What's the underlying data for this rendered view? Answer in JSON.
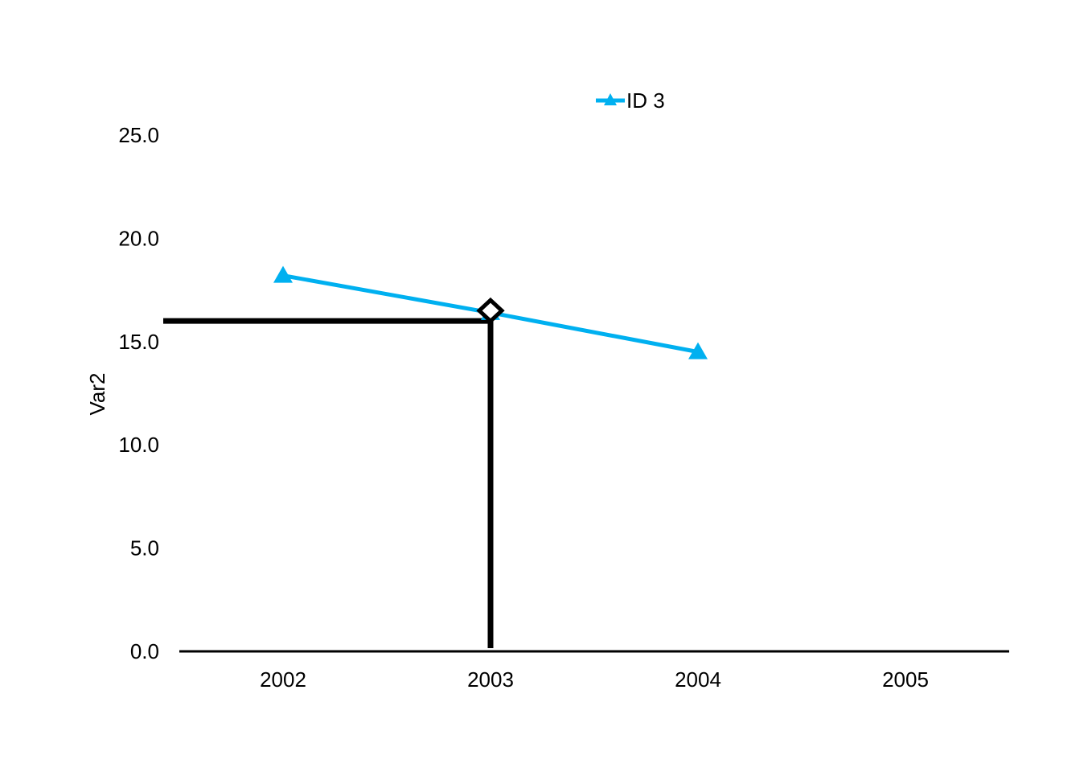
{
  "chart_data": {
    "type": "line",
    "categories": [
      "2002",
      "2003",
      "2004",
      "2005"
    ],
    "series": [
      {
        "name": "ID 3",
        "values": [
          18.2,
          16.4,
          14.5,
          null
        ],
        "color": "#00B0F0",
        "marker": "triangle"
      }
    ],
    "ylabel": "Var2",
    "xlabel": "",
    "ylim": [
      0,
      25
    ],
    "yticks": [
      "0.0",
      "5.0",
      "10.0",
      "15.0",
      "20.0",
      "25.0"
    ],
    "ytick_values": [
      0,
      5,
      10,
      15,
      20,
      25
    ],
    "legend_position": "top-center",
    "grid": false,
    "annotation": {
      "description": "reference cross-hair lines at category 2003",
      "x_category": "2003",
      "y_value": 16.0,
      "marker_value": 16.5,
      "color": "#000000",
      "marker": "diamond"
    }
  }
}
